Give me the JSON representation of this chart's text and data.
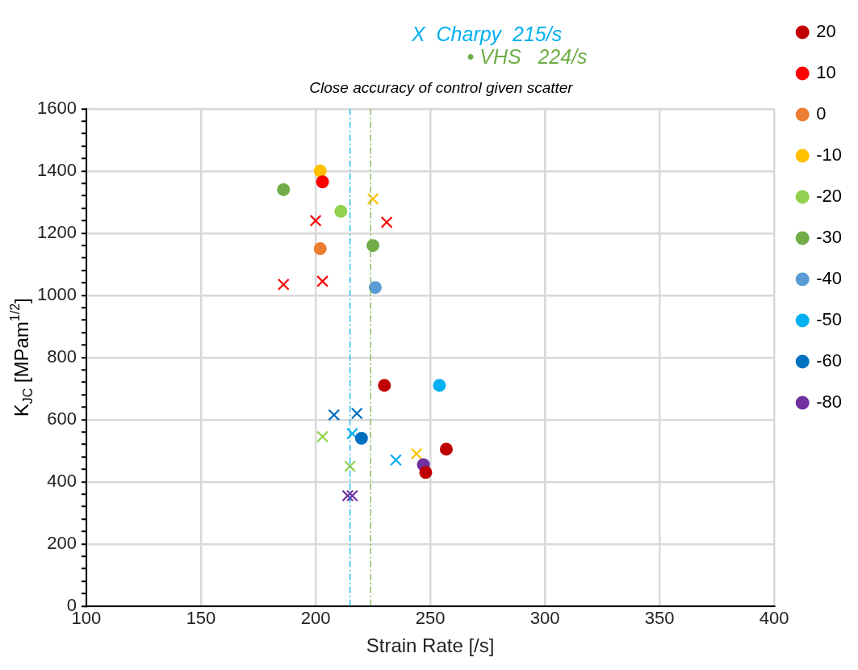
{
  "chart_data": {
    "type": "scatter",
    "title": "Close accuracy of control given scatter",
    "xlabel": "Strain Rate [/s]",
    "ylabel": "K$_{JC}$ [MPam$^{1/2}$]",
    "xlim": [
      100,
      400
    ],
    "xticks": [
      100,
      150,
      200,
      250,
      300,
      350,
      400
    ],
    "ylim": [
      0,
      1600
    ],
    "yticks": [
      0,
      {
        "value": 40,
        "label": null
      },
      {
        "value": 80,
        "label": null
      },
      {
        "value": 120,
        "label": null
      },
      {
        "value": 160,
        "label": null
      },
      200,
      {
        "value": 240,
        "label": null
      },
      {
        "value": 280,
        "label": null
      },
      {
        "value": 320,
        "label": null
      },
      {
        "value": 360,
        "label": null
      },
      400,
      {
        "value": 440,
        "label": null
      },
      {
        "value": 480,
        "label": null
      },
      {
        "value": 520,
        "label": null
      },
      {
        "value": 560,
        "label": null
      },
      600,
      {
        "value": 640,
        "label": null
      },
      {
        "value": 680,
        "label": null
      },
      {
        "value": 720,
        "label": null
      },
      {
        "value": 760,
        "label": null
      },
      800,
      {
        "value": 840,
        "label": null
      },
      {
        "value": 880,
        "label": null
      },
      {
        "value": 920,
        "label": null
      },
      {
        "value": 960,
        "label": null
      },
      1000,
      {
        "value": 1040,
        "label": null
      },
      {
        "value": 1080,
        "label": null
      },
      {
        "value": 1120,
        "label": null
      },
      {
        "value": 1160,
        "label": null
      },
      1200,
      {
        "value": 1240,
        "label": null
      },
      {
        "value": 1280,
        "label": null
      },
      {
        "value": 1320,
        "label": null
      },
      {
        "value": 1360,
        "label": null
      },
      1400,
      {
        "value": 1440,
        "label": null
      },
      {
        "value": 1480,
        "label": null
      },
      {
        "value": 1520,
        "label": null
      },
      {
        "value": 1560,
        "label": null
      },
      1600
    ],
    "grid": true,
    "legend": "right",
    "ref_lines": [
      {
        "axis": "x",
        "value": 215,
        "label": "X  Charpy  215/s",
        "color": "#00b0f0",
        "line_style": "dashdot"
      },
      {
        "axis": "x",
        "value": 224,
        "label": "• VHS   224/s",
        "color": "#70ad47",
        "line_style": "dashdot"
      }
    ],
    "series": [
      {
        "name": "20",
        "color": "#c00000",
        "marker": "circle",
        "x": [
          230,
          257,
          248
        ],
        "values": [
          710,
          505,
          430
        ]
      },
      {
        "name": "10",
        "color": "#ff0000",
        "marker": "circle",
        "x": [
          203
        ],
        "values": [
          1365
        ]
      },
      {
        "name": "0",
        "color": "#ed7d31",
        "marker": "circle",
        "x": [
          202
        ],
        "values": [
          1150
        ]
      },
      {
        "name": "-10",
        "color": "#ffc000",
        "marker": "circle",
        "x": [
          202
        ],
        "values": [
          1400
        ]
      },
      {
        "name": "-20",
        "color": "#92d050",
        "marker": "circle",
        "x": [
          211
        ],
        "values": [
          1270
        ]
      },
      {
        "name": "-30",
        "color": "#70ad47",
        "marker": "circle",
        "x": [
          186,
          225
        ],
        "values": [
          1340,
          1160
        ]
      },
      {
        "name": "-40",
        "color": "#5b9bd5",
        "marker": "circle",
        "x": [
          226
        ],
        "values": [
          1025
        ]
      },
      {
        "name": "-50",
        "color": "#00b0f0",
        "marker": "circle",
        "x": [
          254
        ],
        "values": [
          710
        ]
      },
      {
        "name": "-60",
        "color": "#0070c0",
        "marker": "circle",
        "x": [
          220
        ],
        "values": [
          540
        ]
      },
      {
        "name": "-80",
        "color": "#7030a0",
        "marker": "circle",
        "x": [
          247
        ],
        "values": [
          455
        ]
      },
      {
        "color": "#ff0000",
        "marker": "cross",
        "x": [
          186,
          203,
          200,
          231
        ],
        "values": [
          1035,
          1045,
          1240,
          1235
        ]
      },
      {
        "color": "#ffc000",
        "marker": "cross",
        "x": [
          225,
          244
        ],
        "values": [
          1310,
          490
        ]
      },
      {
        "color": "#92d050",
        "marker": "cross",
        "x": [
          203,
          215
        ],
        "values": [
          545,
          450
        ]
      },
      {
        "color": "#00b0f0",
        "marker": "cross",
        "x": [
          216,
          235
        ],
        "values": [
          555,
          470
        ]
      },
      {
        "color": "#0070c0",
        "marker": "cross",
        "x": [
          208,
          218
        ],
        "values": [
          615,
          620
        ]
      },
      {
        "color": "#7030a0",
        "marker": "cross",
        "x": [
          214,
          216
        ],
        "values": [
          355,
          355
        ]
      }
    ]
  }
}
